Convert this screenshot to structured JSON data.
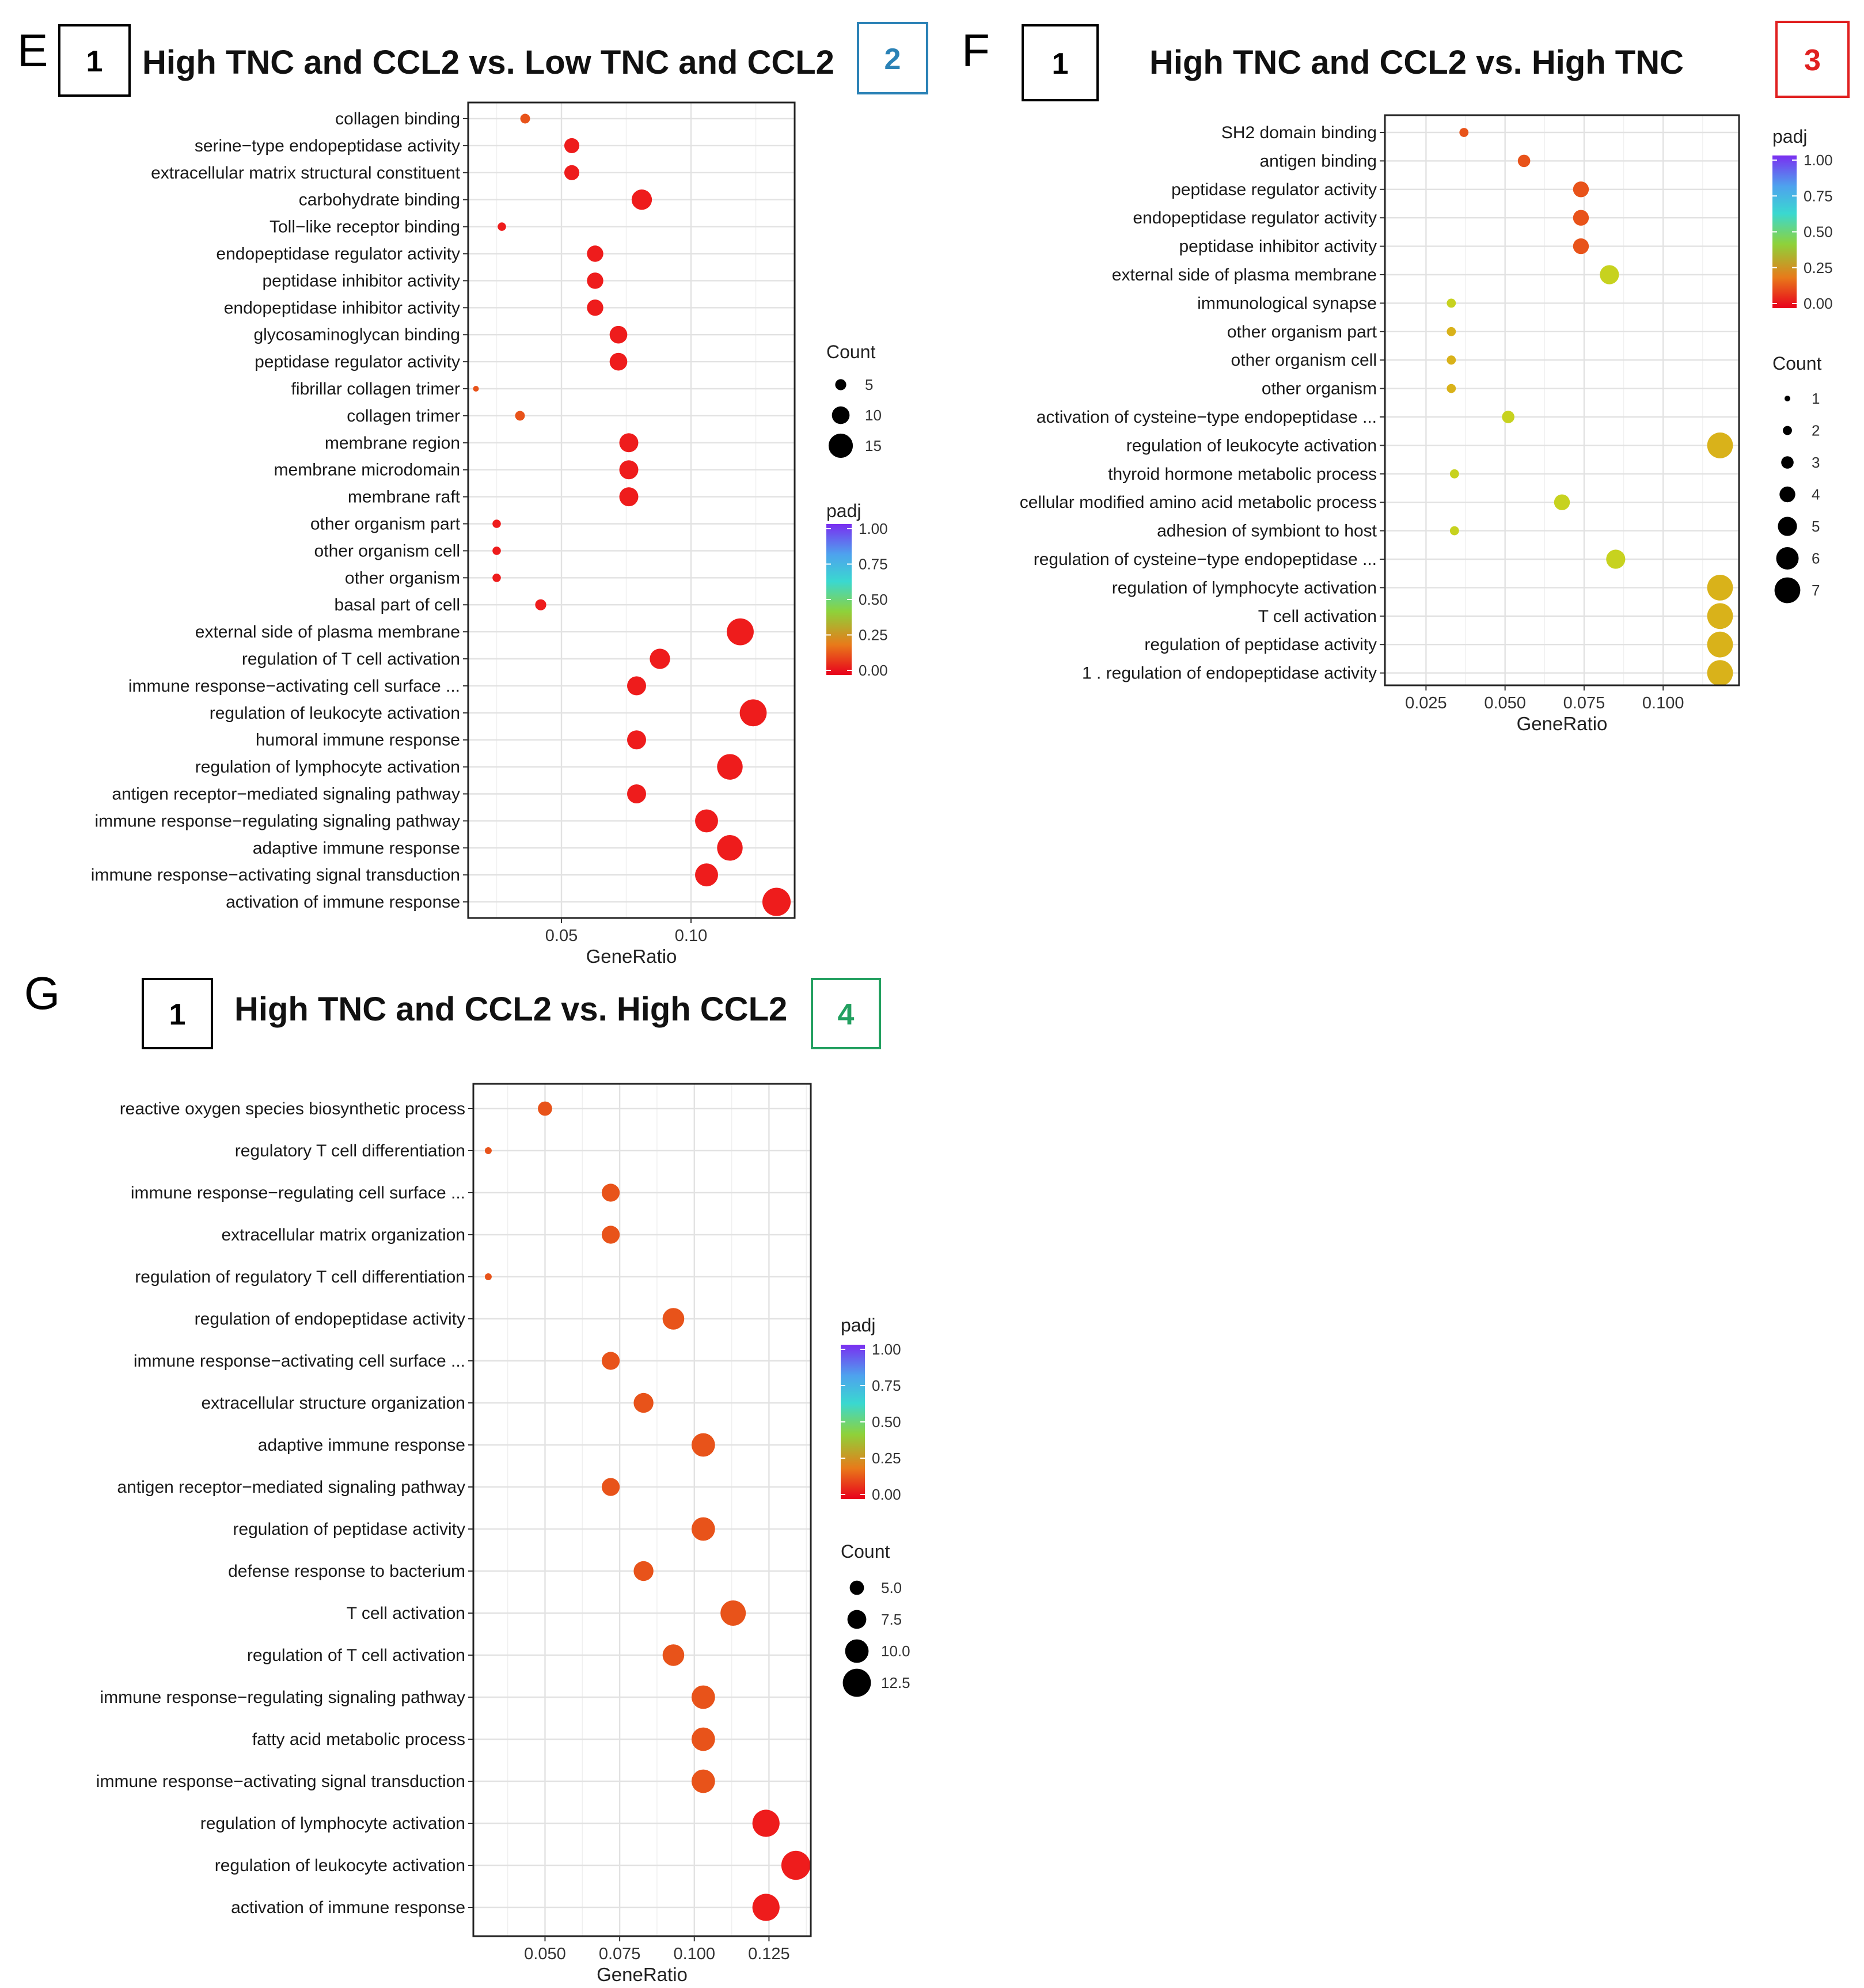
{
  "colors": {
    "red": "#ee1c1c",
    "orange": "#e8531a",
    "gold": "#d9b21a",
    "yellowgreen": "#c7d21f",
    "box2": "#2b82b6",
    "box3": "#e02020",
    "box4": "#23a060",
    "gradient": [
      "#e8001c",
      "#e87a1a",
      "#8ed23a",
      "#3ad8d0",
      "#4ea2ee",
      "#7a2ef0"
    ]
  },
  "chart_data": [
    {
      "panel": "E",
      "type": "scatter",
      "box_left": "1",
      "box_right": "2",
      "title": "High TNC and CCL2 vs. Low TNC and CCL2",
      "xlabel": "GeneRatio",
      "xlim": [
        0.014,
        0.14
      ],
      "xticks": [
        0.05,
        0.1
      ],
      "xtick_labels": [
        "0.05",
        "0.10"
      ],
      "count_legend": {
        "title": "Count",
        "values": [
          5,
          10,
          15
        ],
        "labels": [
          "5",
          "10",
          "15"
        ]
      },
      "padj_legend": {
        "title": "padj",
        "labels": [
          "1.00",
          "0.75",
          "0.50",
          "0.25",
          "0.00"
        ]
      },
      "points": [
        {
          "term": "collagen binding",
          "ratio": 0.036,
          "count": 4,
          "color": "orange"
        },
        {
          "term": "serine−type endopeptidase activity",
          "ratio": 0.054,
          "count": 8,
          "color": "red"
        },
        {
          "term": "extracellular matrix structural constituent",
          "ratio": 0.054,
          "count": 8,
          "color": "red"
        },
        {
          "term": "carbohydrate binding",
          "ratio": 0.081,
          "count": 12,
          "color": "red"
        },
        {
          "term": "Toll−like receptor binding",
          "ratio": 0.027,
          "count": 3,
          "color": "red"
        },
        {
          "term": "endopeptidase regulator activity",
          "ratio": 0.063,
          "count": 9,
          "color": "red"
        },
        {
          "term": "peptidase inhibitor activity",
          "ratio": 0.063,
          "count": 9,
          "color": "red"
        },
        {
          "term": "endopeptidase inhibitor activity",
          "ratio": 0.063,
          "count": 9,
          "color": "red"
        },
        {
          "term": "glycosaminoglycan binding",
          "ratio": 0.072,
          "count": 10,
          "color": "red"
        },
        {
          "term": "peptidase regulator activity",
          "ratio": 0.072,
          "count": 10,
          "color": "red"
        },
        {
          "term": "fibrillar collagen trimer",
          "ratio": 0.017,
          "count": 1,
          "color": "orange"
        },
        {
          "term": "collagen trimer",
          "ratio": 0.034,
          "count": 4,
          "color": "orange"
        },
        {
          "term": "membrane region",
          "ratio": 0.076,
          "count": 11,
          "color": "red"
        },
        {
          "term": "membrane microdomain",
          "ratio": 0.076,
          "count": 11,
          "color": "red"
        },
        {
          "term": "membrane raft",
          "ratio": 0.076,
          "count": 11,
          "color": "red"
        },
        {
          "term": "other organism part",
          "ratio": 0.025,
          "count": 3,
          "color": "red"
        },
        {
          "term": "other organism cell",
          "ratio": 0.025,
          "count": 3,
          "color": "red"
        },
        {
          "term": "other organism",
          "ratio": 0.025,
          "count": 3,
          "color": "red"
        },
        {
          "term": "basal part of cell",
          "ratio": 0.042,
          "count": 5,
          "color": "red"
        },
        {
          "term": "external side of plasma membrane",
          "ratio": 0.119,
          "count": 17,
          "color": "red"
        },
        {
          "term": "regulation of T cell activation",
          "ratio": 0.088,
          "count": 12,
          "color": "red"
        },
        {
          "term": "immune response−activating cell surface ...",
          "ratio": 0.079,
          "count": 11,
          "color": "red"
        },
        {
          "term": "regulation of leukocyte activation",
          "ratio": 0.124,
          "count": 17,
          "color": "red"
        },
        {
          "term": "humoral immune response",
          "ratio": 0.079,
          "count": 11,
          "color": "red"
        },
        {
          "term": "regulation of lymphocyte activation",
          "ratio": 0.115,
          "count": 16,
          "color": "red"
        },
        {
          "term": "antigen receptor−mediated signaling pathway",
          "ratio": 0.079,
          "count": 11,
          "color": "red"
        },
        {
          "term": "immune response−regulating signaling pathway",
          "ratio": 0.106,
          "count": 14,
          "color": "red"
        },
        {
          "term": "adaptive immune response",
          "ratio": 0.115,
          "count": 16,
          "color": "red"
        },
        {
          "term": "immune response−activating signal transduction",
          "ratio": 0.106,
          "count": 14,
          "color": "red"
        },
        {
          "term": "activation of immune response",
          "ratio": 0.133,
          "count": 18,
          "color": "red"
        }
      ]
    },
    {
      "panel": "F",
      "type": "scatter",
      "box_left": "1",
      "box_right": "3",
      "title": "High TNC and CCL2 vs. High TNC",
      "xlabel": "GeneRatio",
      "xlim": [
        0.012,
        0.124
      ],
      "xticks": [
        0.025,
        0.05,
        0.075,
        0.1
      ],
      "xtick_labels": [
        "0.025",
        "0.050",
        "0.075",
        "0.100"
      ],
      "count_legend": {
        "title": "Count",
        "values": [
          1,
          2,
          3,
          4,
          5,
          6,
          7
        ],
        "labels": [
          "1",
          "2",
          "3",
          "4",
          "5",
          "6",
          "7"
        ]
      },
      "padj_legend": {
        "title": "padj",
        "labels": [
          "1.00",
          "0.75",
          "0.50",
          "0.25",
          "0.00"
        ]
      },
      "points": [
        {
          "term": "SH2 domain binding",
          "ratio": 0.037,
          "count": 2,
          "color": "orange"
        },
        {
          "term": "antigen binding",
          "ratio": 0.056,
          "count": 3,
          "color": "orange"
        },
        {
          "term": "peptidase regulator activity",
          "ratio": 0.074,
          "count": 4,
          "color": "orange"
        },
        {
          "term": "endopeptidase regulator activity",
          "ratio": 0.074,
          "count": 4,
          "color": "orange"
        },
        {
          "term": "peptidase inhibitor activity",
          "ratio": 0.074,
          "count": 4,
          "color": "orange"
        },
        {
          "term": "external side of plasma membrane",
          "ratio": 0.083,
          "count": 5,
          "color": "yellowgreen"
        },
        {
          "term": "immunological synapse",
          "ratio": 0.033,
          "count": 2,
          "color": "yellowgreen"
        },
        {
          "term": "other organism part",
          "ratio": 0.033,
          "count": 2,
          "color": "gold"
        },
        {
          "term": "other organism cell",
          "ratio": 0.033,
          "count": 2,
          "color": "gold"
        },
        {
          "term": "other organism",
          "ratio": 0.033,
          "count": 2,
          "color": "gold"
        },
        {
          "term": "activation of cysteine−type endopeptidase ...",
          "ratio": 0.051,
          "count": 3,
          "color": "yellowgreen"
        },
        {
          "term": "regulation of leukocyte activation",
          "ratio": 0.118,
          "count": 7,
          "color": "gold"
        },
        {
          "term": "thyroid hormone metabolic process",
          "ratio": 0.034,
          "count": 2,
          "color": "yellowgreen"
        },
        {
          "term": "cellular modified amino acid metabolic process",
          "ratio": 0.068,
          "count": 4,
          "color": "yellowgreen"
        },
        {
          "term": "adhesion of symbiont to host",
          "ratio": 0.034,
          "count": 2,
          "color": "yellowgreen"
        },
        {
          "term": "regulation of cysteine−type endopeptidase ...",
          "ratio": 0.085,
          "count": 5,
          "color": "yellowgreen"
        },
        {
          "term": "regulation of lymphocyte activation",
          "ratio": 0.118,
          "count": 7,
          "color": "gold"
        },
        {
          "term": "T cell activation",
          "ratio": 0.118,
          "count": 7,
          "color": "gold"
        },
        {
          "term": "regulation of peptidase activity",
          "ratio": 0.118,
          "count": 7,
          "color": "gold"
        },
        {
          "term": "1 . regulation of endopeptidase activity",
          "ratio": 0.118,
          "count": 7,
          "color": "gold"
        }
      ]
    },
    {
      "panel": "G",
      "type": "scatter",
      "box_left": "1",
      "box_right": "4",
      "title": "High TNC and CCL2 vs. High CCL2",
      "xlabel": "GeneRatio",
      "xlim": [
        0.026,
        0.139
      ],
      "xticks": [
        0.05,
        0.075,
        0.1,
        0.125
      ],
      "xtick_labels": [
        "0.050",
        "0.075",
        "0.100",
        "0.125"
      ],
      "count_legend": {
        "title": "Count",
        "values": [
          5,
          7.5,
          10,
          12.5
        ],
        "labels": [
          "5.0",
          "7.5",
          "10.0",
          "12.5"
        ]
      },
      "padj_legend": {
        "title": "padj",
        "labels": [
          "1.00",
          "0.75",
          "0.50",
          "0.25",
          "0.00"
        ]
      },
      "points": [
        {
          "term": "reactive oxygen species biosynthetic process",
          "ratio": 0.05,
          "count": 5,
          "color": "orange"
        },
        {
          "term": "regulatory T cell differentiation",
          "ratio": 0.031,
          "count": 1,
          "color": "orange"
        },
        {
          "term": "immune response−regulating cell surface ...",
          "ratio": 0.072,
          "count": 7,
          "color": "orange"
        },
        {
          "term": "extracellular matrix organization",
          "ratio": 0.072,
          "count": 7,
          "color": "orange"
        },
        {
          "term": "regulation of regulatory T cell differentiation",
          "ratio": 0.031,
          "count": 1,
          "color": "orange"
        },
        {
          "term": "regulation of endopeptidase activity",
          "ratio": 0.093,
          "count": 9,
          "color": "orange"
        },
        {
          "term": "immune response−activating cell surface ...",
          "ratio": 0.072,
          "count": 7,
          "color": "orange"
        },
        {
          "term": "extracellular structure organization",
          "ratio": 0.083,
          "count": 8,
          "color": "orange"
        },
        {
          "term": "adaptive immune response",
          "ratio": 0.103,
          "count": 10,
          "color": "orange"
        },
        {
          "term": "antigen receptor−mediated signaling pathway",
          "ratio": 0.072,
          "count": 7,
          "color": "orange"
        },
        {
          "term": "regulation of peptidase activity",
          "ratio": 0.103,
          "count": 10,
          "color": "orange"
        },
        {
          "term": "defense response to bacterium",
          "ratio": 0.083,
          "count": 8,
          "color": "orange"
        },
        {
          "term": "T cell activation",
          "ratio": 0.113,
          "count": 11,
          "color": "orange"
        },
        {
          "term": "regulation of T cell activation",
          "ratio": 0.093,
          "count": 9,
          "color": "orange"
        },
        {
          "term": "immune response−regulating signaling pathway",
          "ratio": 0.103,
          "count": 10,
          "color": "orange"
        },
        {
          "term": "fatty acid metabolic process",
          "ratio": 0.103,
          "count": 10,
          "color": "orange"
        },
        {
          "term": "immune response−activating signal transduction",
          "ratio": 0.103,
          "count": 10,
          "color": "orange"
        },
        {
          "term": "regulation of lymphocyte activation",
          "ratio": 0.124,
          "count": 12,
          "color": "red"
        },
        {
          "term": "regulation of leukocyte activation",
          "ratio": 0.134,
          "count": 13,
          "color": "red"
        },
        {
          "term": "activation of immune response",
          "ratio": 0.124,
          "count": 12,
          "color": "red"
        }
      ]
    }
  ]
}
